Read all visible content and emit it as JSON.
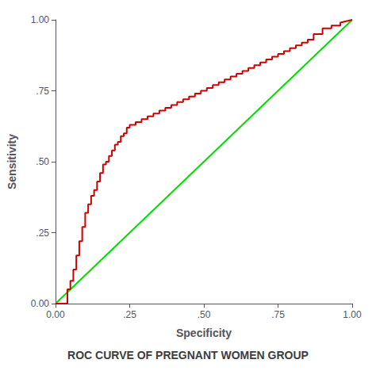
{
  "chart_data": {
    "type": "line",
    "title": "ROC CURVE OF PREGNANT WOMEN GROUP",
    "xlabel": "Specificity",
    "ylabel": "Sensitivity",
    "xlim": [
      0.0,
      1.0
    ],
    "ylim": [
      0.0,
      1.0
    ],
    "xticks": [
      {
        "value": 0.0,
        "label": "0.00"
      },
      {
        "value": 0.25,
        "label": ".25"
      },
      {
        "value": 0.5,
        "label": ".50"
      },
      {
        "value": 0.75,
        "label": ".75"
      },
      {
        "value": 1.0,
        "label": "1.00"
      }
    ],
    "yticks": [
      {
        "value": 0.0,
        "label": "0.00"
      },
      {
        "value": 0.25,
        "label": ".25"
      },
      {
        "value": 0.5,
        "label": ".50"
      },
      {
        "value": 0.75,
        "label": ".75"
      },
      {
        "value": 1.0,
        "label": "1.00"
      }
    ],
    "grid": false,
    "series": [
      {
        "color": "#00dd00",
        "x": [
          0,
          1
        ],
        "values": [
          0,
          1
        ]
      },
      {
        "color": "#cc0000",
        "x": [
          0.0,
          0.0,
          0.04,
          0.04,
          0.05,
          0.05,
          0.06,
          0.06,
          0.07,
          0.07,
          0.08,
          0.08,
          0.09,
          0.09,
          0.1,
          0.1,
          0.11,
          0.11,
          0.12,
          0.12,
          0.13,
          0.13,
          0.14,
          0.14,
          0.15,
          0.15,
          0.16,
          0.16,
          0.17,
          0.17,
          0.18,
          0.18,
          0.19,
          0.19,
          0.2,
          0.2,
          0.21,
          0.21,
          0.22,
          0.22,
          0.23,
          0.23,
          0.24,
          0.24,
          0.25,
          0.25,
          0.27,
          0.27,
          0.29,
          0.29,
          0.31,
          0.31,
          0.33,
          0.33,
          0.35,
          0.35,
          0.37,
          0.37,
          0.39,
          0.39,
          0.41,
          0.41,
          0.43,
          0.43,
          0.45,
          0.45,
          0.47,
          0.47,
          0.49,
          0.49,
          0.51,
          0.51,
          0.53,
          0.53,
          0.55,
          0.55,
          0.57,
          0.57,
          0.59,
          0.59,
          0.61,
          0.61,
          0.63,
          0.63,
          0.65,
          0.65,
          0.67,
          0.67,
          0.69,
          0.69,
          0.71,
          0.71,
          0.73,
          0.73,
          0.75,
          0.75,
          0.77,
          0.77,
          0.79,
          0.79,
          0.81,
          0.81,
          0.83,
          0.83,
          0.85,
          0.85,
          0.87,
          0.87,
          0.9,
          0.9,
          0.93,
          0.93,
          0.96,
          0.96,
          1.0
        ],
        "values": [
          0.0,
          0.0,
          0.0,
          0.05,
          0.05,
          0.08,
          0.08,
          0.12,
          0.12,
          0.17,
          0.17,
          0.22,
          0.22,
          0.27,
          0.27,
          0.32,
          0.32,
          0.35,
          0.35,
          0.38,
          0.38,
          0.4,
          0.4,
          0.43,
          0.43,
          0.46,
          0.46,
          0.49,
          0.49,
          0.5,
          0.5,
          0.52,
          0.52,
          0.54,
          0.54,
          0.56,
          0.56,
          0.57,
          0.57,
          0.59,
          0.59,
          0.6,
          0.6,
          0.62,
          0.62,
          0.63,
          0.63,
          0.64,
          0.64,
          0.65,
          0.65,
          0.66,
          0.66,
          0.67,
          0.67,
          0.68,
          0.68,
          0.69,
          0.69,
          0.7,
          0.7,
          0.71,
          0.71,
          0.72,
          0.72,
          0.73,
          0.73,
          0.74,
          0.74,
          0.75,
          0.75,
          0.76,
          0.76,
          0.77,
          0.77,
          0.78,
          0.78,
          0.79,
          0.79,
          0.8,
          0.8,
          0.81,
          0.81,
          0.82,
          0.82,
          0.83,
          0.83,
          0.84,
          0.84,
          0.85,
          0.85,
          0.86,
          0.86,
          0.87,
          0.87,
          0.88,
          0.88,
          0.89,
          0.89,
          0.9,
          0.9,
          0.91,
          0.91,
          0.92,
          0.92,
          0.93,
          0.93,
          0.95,
          0.95,
          0.97,
          0.97,
          0.98,
          0.98,
          0.99,
          1.0
        ]
      }
    ]
  }
}
